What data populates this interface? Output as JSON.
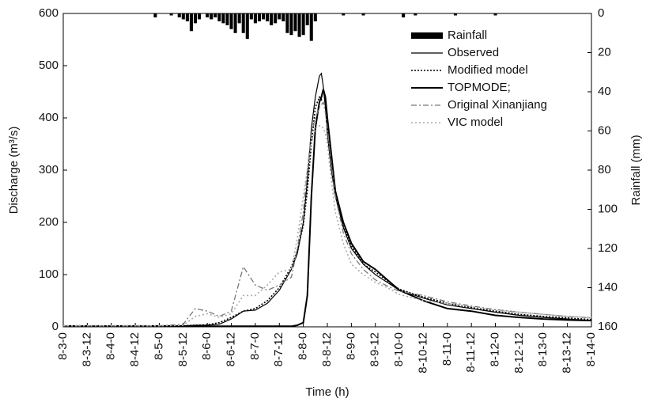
{
  "chart_data": {
    "type": "hydrograph",
    "x_label": "Time (h)",
    "y_label": "Discharge (m³/s)",
    "y2_label": "Rainfall (mm)",
    "xlim": [
      0,
      264
    ],
    "xticks": [
      {
        "value": 0,
        "label": "8-3-0"
      },
      {
        "value": 12,
        "label": "8-3-12"
      },
      {
        "value": 24,
        "label": "8-4-0"
      },
      {
        "value": 36,
        "label": "8-4-12"
      },
      {
        "value": 48,
        "label": "8-5-0"
      },
      {
        "value": 60,
        "label": "8-5-12"
      },
      {
        "value": 72,
        "label": "8-6-0"
      },
      {
        "value": 84,
        "label": "8-6-12"
      },
      {
        "value": 96,
        "label": "8-7-0"
      },
      {
        "value": 108,
        "label": "8-7-12"
      },
      {
        "value": 120,
        "label": "8-8-0"
      },
      {
        "value": 132,
        "label": "8-8-12"
      },
      {
        "value": 144,
        "label": "8-9-0"
      },
      {
        "value": 156,
        "label": "8-9-12"
      },
      {
        "value": 168,
        "label": "8-10-0"
      },
      {
        "value": 180,
        "label": "8-10-12"
      },
      {
        "value": 192,
        "label": "8-11-0"
      },
      {
        "value": 204,
        "label": "8-11-12"
      },
      {
        "value": 216,
        "label": "8-12-0"
      },
      {
        "value": 228,
        "label": "8-12-12"
      },
      {
        "value": 240,
        "label": "8-13-0"
      },
      {
        "value": 252,
        "label": "8-13-12"
      },
      {
        "value": 264,
        "label": "8-14-0"
      }
    ],
    "ylim": [
      0,
      600
    ],
    "yticks": [
      0,
      100,
      200,
      300,
      400,
      500,
      600
    ],
    "y2lim": [
      0,
      160
    ],
    "y2ticks": [
      0,
      20,
      40,
      60,
      80,
      100,
      120,
      140,
      160
    ],
    "y2_inverted": true,
    "rainfall": {
      "name": "Rainfall",
      "color": "#000000",
      "axis": "y2",
      "x": [
        46,
        54,
        58,
        60,
        62,
        64,
        66,
        68,
        72,
        74,
        76,
        78,
        80,
        82,
        84,
        86,
        88,
        90,
        92,
        94,
        96,
        98,
        100,
        102,
        104,
        106,
        108,
        110,
        112,
        114,
        116,
        118,
        120,
        122,
        124,
        126,
        140,
        150,
        170,
        176,
        196,
        216
      ],
      "values": [
        2,
        1,
        2,
        3,
        4,
        9,
        5,
        3,
        2,
        3,
        2,
        4,
        5,
        6,
        8,
        10,
        5,
        10,
        13,
        3,
        5,
        4,
        3,
        4,
        6,
        5,
        3,
        4,
        10,
        11,
        9,
        12,
        11,
        6,
        14,
        4,
        1,
        1,
        2,
        1,
        1,
        1
      ]
    },
    "x": [
      0,
      12,
      24,
      36,
      48,
      60,
      66,
      72,
      78,
      84,
      90,
      96,
      102,
      108,
      114,
      117,
      120,
      122,
      124,
      126,
      128,
      129,
      130,
      131,
      132,
      134,
      136,
      140,
      144,
      150,
      156,
      162,
      168,
      180,
      192,
      204,
      216,
      228,
      240,
      252,
      264
    ],
    "series": [
      {
        "name": "Observed",
        "color": "#000000",
        "width": 1.2,
        "dash": "none",
        "values": [
          2,
          1,
          1,
          1,
          2,
          2,
          3,
          3,
          5,
          15,
          30,
          32,
          45,
          70,
          110,
          140,
          200,
          280,
          380,
          440,
          480,
          485,
          460,
          420,
          370,
          300,
          250,
          190,
          150,
          120,
          100,
          85,
          70,
          55,
          42,
          35,
          28,
          22,
          18,
          15,
          12
        ]
      },
      {
        "name": "Modified model",
        "color": "#000000",
        "width": 1.6,
        "dash": "2 2",
        "values": [
          2,
          2,
          2,
          2,
          2,
          2,
          3,
          4,
          8,
          18,
          30,
          35,
          50,
          75,
          115,
          145,
          195,
          260,
          350,
          420,
          440,
          435,
          455,
          430,
          390,
          320,
          260,
          195,
          155,
          120,
          105,
          88,
          72,
          57,
          45,
          37,
          30,
          24,
          20,
          17,
          14
        ]
      },
      {
        "name": "TOPMODE;",
        "color": "#000000",
        "width": 2,
        "dash": "none",
        "values": [
          1,
          1,
          1,
          1,
          1,
          1,
          1,
          1,
          1,
          1,
          1,
          1,
          1,
          1,
          1,
          3,
          8,
          60,
          250,
          380,
          430,
          440,
          455,
          440,
          400,
          330,
          260,
          200,
          160,
          125,
          110,
          90,
          70,
          50,
          35,
          30,
          22,
          18,
          15,
          13,
          12
        ]
      },
      {
        "name": "Original Xinanjiang",
        "color": "#777777",
        "width": 1.3,
        "dash": "7 3 2 3",
        "values": [
          2,
          2,
          2,
          2,
          2,
          5,
          35,
          30,
          20,
          30,
          115,
          80,
          70,
          80,
          95,
          150,
          220,
          300,
          370,
          400,
          420,
          425,
          430,
          410,
          380,
          310,
          250,
          180,
          140,
          110,
          90,
          78,
          68,
          60,
          48,
          40,
          33,
          28,
          24,
          20,
          17
        ]
      },
      {
        "name": "VIC model",
        "color": "#aaaaaa",
        "width": 1.6,
        "dash": "2 3",
        "values": [
          2,
          2,
          2,
          2,
          2,
          3,
          20,
          25,
          18,
          25,
          60,
          60,
          80,
          105,
          110,
          170,
          250,
          300,
          350,
          380,
          385,
          385,
          380,
          370,
          350,
          280,
          220,
          160,
          120,
          100,
          85,
          75,
          62,
          50,
          45,
          38,
          32,
          28,
          24,
          20,
          18
        ]
      }
    ],
    "legend": "upper right"
  }
}
